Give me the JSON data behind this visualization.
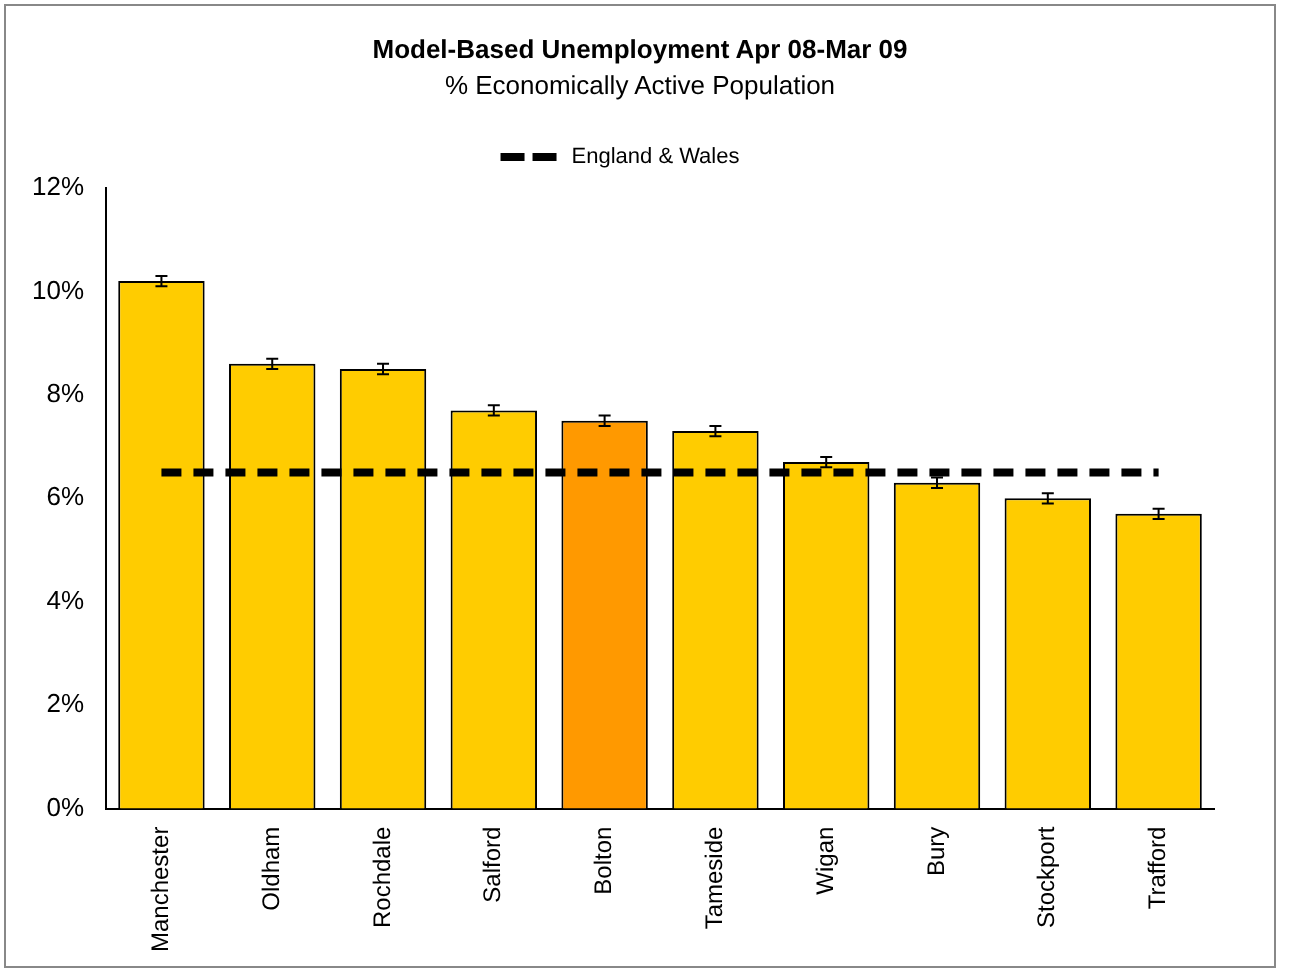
{
  "chart_data": {
    "type": "bar",
    "title": "Model-Based Unemployment Apr 08-Mar 09",
    "subtitle": "% Economically Active Population",
    "categories": [
      "Manchester",
      "Oldham",
      "Rochdale",
      "Salford",
      "Bolton",
      "Tameside",
      "Wigan",
      "Bury",
      "Stockport",
      "Trafford"
    ],
    "series": [
      {
        "colors": [
          "#ffcc00",
          "#ffcc00",
          "#ffcc00",
          "#ffcc00",
          "#ff9900",
          "#ffcc00",
          "#ffcc00",
          "#ffcc00",
          "#ffcc00",
          "#ffcc00"
        ],
        "values": [
          10.2,
          8.6,
          8.5,
          7.7,
          7.5,
          7.3,
          6.7,
          6.3,
          6.0,
          5.7
        ],
        "errors": [
          0.1,
          0.1,
          0.1,
          0.1,
          0.1,
          0.1,
          0.1,
          0.1,
          0.1,
          0.1
        ]
      },
      {
        "type": "line",
        "name": "England & Wales",
        "color": "#000000",
        "line_style": "dashed",
        "marker": "none",
        "values": [
          6.5,
          6.5,
          6.5,
          6.5,
          6.5,
          6.5,
          6.5,
          6.5,
          6.5,
          6.5
        ]
      }
    ],
    "ylim": [
      0,
      12
    ],
    "yticks": [
      {
        "value": 0,
        "label": "0%"
      },
      {
        "value": 2,
        "label": "2%"
      },
      {
        "value": 4,
        "label": "4%"
      },
      {
        "value": 6,
        "label": "6%"
      },
      {
        "value": 8,
        "label": "8%"
      },
      {
        "value": 10,
        "label": "10%"
      },
      {
        "value": 12,
        "label": "12%"
      }
    ],
    "grid": false,
    "legend": "top"
  }
}
